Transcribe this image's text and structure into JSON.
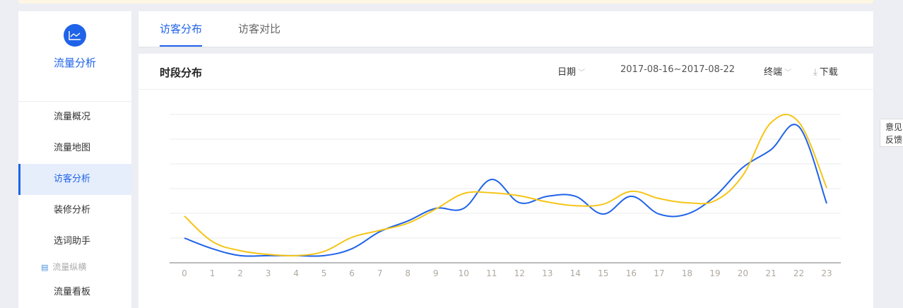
{
  "sidebar": {
    "title": "流量分析",
    "icon": "line-chart-icon",
    "items": [
      {
        "label": "流量概况"
      },
      {
        "label": "流量地图"
      },
      {
        "label": "访客分析",
        "active": true
      },
      {
        "label": "装修分析"
      },
      {
        "label": "选词助手"
      }
    ],
    "group": {
      "label": "流量纵横",
      "icon": "table-icon"
    },
    "items2": [
      {
        "label": "流量看板"
      }
    ]
  },
  "tabs": [
    {
      "label": "访客分布",
      "active": true
    },
    {
      "label": "访客对比"
    }
  ],
  "panel": {
    "title": "时段分布",
    "date_label": "日期",
    "date_range": "2017-08-16~2017-08-22",
    "terminal_label": "终端",
    "download_label": "下载"
  },
  "feedback": {
    "line1": "意见",
    "line2": "反馈"
  },
  "chart_data": {
    "type": "line",
    "title": "",
    "xlabel": "",
    "ylabel": "",
    "grid": true,
    "legend": "none",
    "categories": [
      "0",
      "1",
      "2",
      "3",
      "4",
      "5",
      "6",
      "7",
      "8",
      "9",
      "10",
      "11",
      "12",
      "13",
      "14",
      "15",
      "16",
      "17",
      "18",
      "19",
      "20",
      "21",
      "22",
      "23"
    ],
    "ylim": [
      0,
      6
    ],
    "series": [
      {
        "color": "#1f63e8",
        "values": [
          1.0,
          0.57,
          0.29,
          0.29,
          0.29,
          0.29,
          0.57,
          1.26,
          1.69,
          2.2,
          2.2,
          3.37,
          2.43,
          2.69,
          2.69,
          1.97,
          2.69,
          1.97,
          1.97,
          2.69,
          3.86,
          4.57,
          5.51,
          2.4
        ]
      },
      {
        "color": "#f5c518",
        "values": [
          1.89,
          0.86,
          0.49,
          0.34,
          0.29,
          0.46,
          1.03,
          1.31,
          1.6,
          2.17,
          2.8,
          2.83,
          2.71,
          2.46,
          2.31,
          2.37,
          2.89,
          2.6,
          2.43,
          2.51,
          3.54,
          5.66,
          5.69,
          3.03
        ]
      }
    ]
  }
}
